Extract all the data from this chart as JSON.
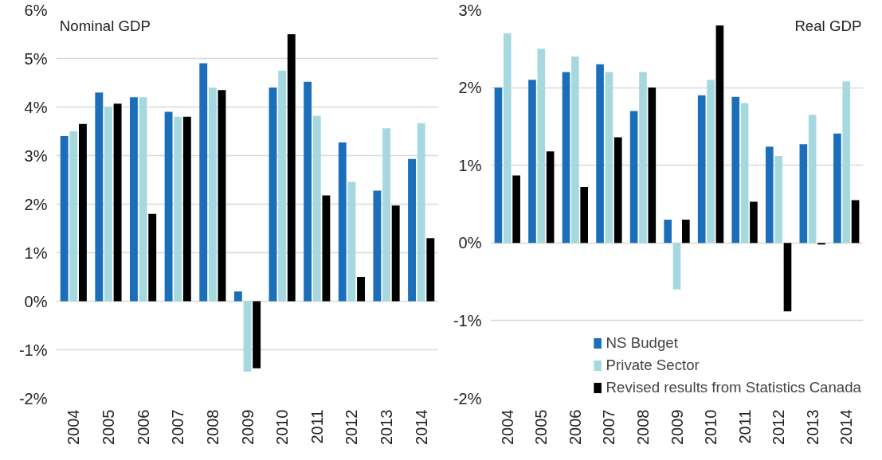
{
  "chart_data": [
    {
      "type": "bar",
      "title": "Nominal GDP",
      "categories": [
        "2004",
        "2005",
        "2006",
        "2007",
        "2008",
        "2009",
        "2010",
        "2011",
        "2012",
        "2013",
        "2014"
      ],
      "series": [
        {
          "color": "#1b6fba",
          "values": [
            3.4,
            4.3,
            4.2,
            3.9,
            4.9,
            0.2,
            4.4,
            4.52,
            3.27,
            2.28,
            2.93
          ]
        },
        {
          "color": "#a6d9df",
          "values": [
            3.5,
            4.0,
            4.2,
            3.8,
            4.4,
            -1.45,
            4.75,
            3.82,
            2.46,
            3.56,
            3.67
          ]
        },
        {
          "color": "#000000",
          "values": [
            3.65,
            4.07,
            1.8,
            3.8,
            4.35,
            -1.38,
            5.5,
            2.18,
            0.5,
            1.97,
            1.3
          ]
        }
      ],
      "ylim": [
        -2,
        6
      ],
      "yticks": [
        {
          "value": -2,
          "label": "-2%"
        },
        {
          "value": -1,
          "label": "-1%"
        },
        {
          "value": 0,
          "label": "0%"
        },
        {
          "value": 1,
          "label": "1%"
        },
        {
          "value": 2,
          "label": "2%"
        },
        {
          "value": 3,
          "label": "3%"
        },
        {
          "value": 4,
          "label": "4%"
        },
        {
          "value": 5,
          "label": "5%"
        },
        {
          "value": 6,
          "label": "6%"
        }
      ],
      "grid": "y",
      "legend": false
    },
    {
      "type": "bar",
      "title": "Real GDP",
      "categories": [
        "2004",
        "2005",
        "2006",
        "2007",
        "2008",
        "2009",
        "2010",
        "2011",
        "2012",
        "2013",
        "2014"
      ],
      "series": [
        {
          "name": "NS Budget",
          "color": "#1b6fba",
          "values": [
            2.0,
            2.1,
            2.2,
            2.3,
            1.7,
            0.3,
            1.9,
            1.88,
            1.24,
            1.27,
            1.41
          ]
        },
        {
          "name": "Private Sector",
          "color": "#a6d9df",
          "values": [
            2.7,
            2.5,
            2.4,
            2.2,
            2.2,
            -0.6,
            2.1,
            1.8,
            1.12,
            1.65,
            2.08
          ]
        },
        {
          "name": "Revised results from Statistics Canada",
          "color": "#000000",
          "values": [
            0.87,
            1.18,
            0.72,
            1.36,
            2.0,
            0.3,
            2.8,
            0.53,
            -0.88,
            -0.02,
            0.55
          ]
        }
      ],
      "ylim": [
        -2,
        3
      ],
      "yticks": [
        {
          "value": -2,
          "label": "-2%"
        },
        {
          "value": -1,
          "label": "-1%"
        },
        {
          "value": 0,
          "label": "0%"
        },
        {
          "value": 1,
          "label": "1%"
        },
        {
          "value": 2,
          "label": "2%"
        },
        {
          "value": 3,
          "label": "3%"
        }
      ],
      "grid": "y",
      "legend": "bottom right"
    }
  ]
}
